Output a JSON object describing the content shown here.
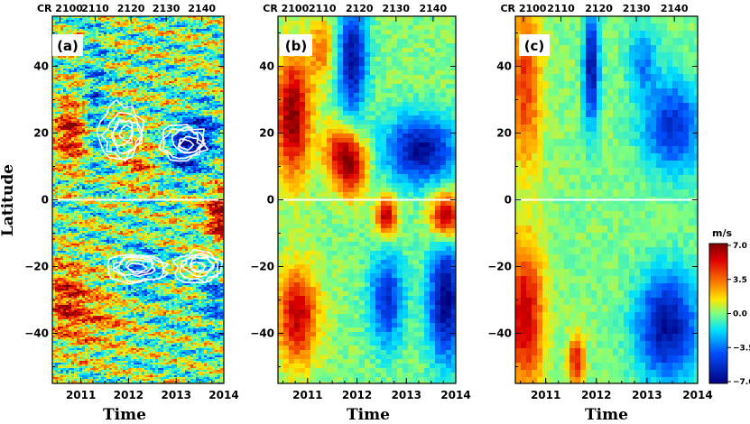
{
  "chart_data": [
    {
      "type": "heatmap",
      "panel_label": "(a)",
      "xlabel": "Time",
      "ylabel": "Latitude",
      "x_ticks": [
        "2011",
        "2012",
        "2013",
        "2014"
      ],
      "y_ticks": [
        "-40",
        "-20",
        "0",
        "20",
        "40"
      ],
      "top_axis_ticks": [
        "CR 2100",
        "2110",
        "2120",
        "2130",
        "2140"
      ],
      "xlim": [
        2010.4,
        2014.0
      ],
      "ylim": [
        -55,
        55
      ],
      "overlay": "white contours (magnetic activity)",
      "pattern": "small-scale banded flows",
      "features": [
        {
          "t": 2010.8,
          "lat": 20,
          "v": 5.5,
          "wt": 0.35,
          "wl": 10
        },
        {
          "t": 2010.7,
          "lat": -30,
          "v": 4.5,
          "wt": 0.4,
          "wl": 12
        },
        {
          "t": 2013.9,
          "lat": -5,
          "v": 6.5,
          "wt": 0.25,
          "wl": 8
        },
        {
          "t": 2013.2,
          "lat": 15,
          "v": -5,
          "wt": 0.35,
          "wl": 8
        },
        {
          "t": 2013.6,
          "lat": 20,
          "v": -4,
          "wt": 0.3,
          "wl": 8
        },
        {
          "t": 2011.3,
          "lat": 28,
          "v": -3,
          "wt": 0.25,
          "wl": 20
        },
        {
          "t": 2012.2,
          "lat": 10,
          "v": 3,
          "wt": 0.3,
          "wl": 8
        },
        {
          "t": 2012.3,
          "lat": -22,
          "v": -3,
          "wt": 0.4,
          "wl": 8
        },
        {
          "t": 2013.8,
          "lat": -30,
          "v": -3,
          "wt": 0.3,
          "wl": 10
        },
        {
          "t": 2011.4,
          "lat": -35,
          "v": 2.5,
          "wt": 0.6,
          "wl": 10
        }
      ]
    },
    {
      "type": "heatmap",
      "panel_label": "(b)",
      "xlabel": "Time",
      "ylabel": "",
      "x_ticks": [
        "2011",
        "2012",
        "2013",
        "2014"
      ],
      "y_ticks": [
        "-40",
        "-20",
        "0",
        "20",
        "40"
      ],
      "top_axis_ticks": [
        "CR 2100",
        "2110",
        "2120",
        "2130",
        "2140"
      ],
      "xlim": [
        2010.4,
        2014.0
      ],
      "ylim": [
        -55,
        55
      ],
      "pattern": "smoothed large-scale flows",
      "features": [
        {
          "t": 2010.7,
          "lat": 25,
          "v": 7,
          "wt": 0.35,
          "wl": 18
        },
        {
          "t": 2010.8,
          "lat": -35,
          "v": 6,
          "wt": 0.4,
          "wl": 14
        },
        {
          "t": 2011.9,
          "lat": 10,
          "v": 6,
          "wt": 0.3,
          "wl": 9
        },
        {
          "t": 2011.6,
          "lat": 15,
          "v": 4,
          "wt": 0.3,
          "wl": 8
        },
        {
          "t": 2012.6,
          "lat": -5,
          "v": 6.5,
          "wt": 0.2,
          "wl": 6
        },
        {
          "t": 2013.8,
          "lat": -5,
          "v": 7,
          "wt": 0.3,
          "wl": 7
        },
        {
          "t": 2011.9,
          "lat": 42,
          "v": -6.5,
          "wt": 0.3,
          "wl": 16
        },
        {
          "t": 2013.3,
          "lat": 15,
          "v": -6.5,
          "wt": 0.7,
          "wl": 10
        },
        {
          "t": 2013.8,
          "lat": -30,
          "v": -7,
          "wt": 0.35,
          "wl": 18
        },
        {
          "t": 2012.6,
          "lat": -30,
          "v": -5,
          "wt": 0.35,
          "wl": 14
        },
        {
          "t": 2011.3,
          "lat": 45,
          "v": 3,
          "wt": 0.3,
          "wl": 10
        }
      ]
    },
    {
      "type": "heatmap",
      "panel_label": "(c)",
      "xlabel": "Time",
      "ylabel": "",
      "x_ticks": [
        "2011",
        "2012",
        "2013",
        "2014"
      ],
      "y_ticks": [
        "-40",
        "-20",
        "0",
        "20",
        "40"
      ],
      "top_axis_ticks": [
        "CR 2100",
        "2110",
        "2120",
        "2130",
        "2140"
      ],
      "xlim": [
        2010.4,
        2014.0
      ],
      "ylim": [
        -55,
        55
      ],
      "pattern": "time-smoothed flows",
      "features": [
        {
          "t": 2010.6,
          "lat": 35,
          "v": 4.5,
          "wt": 0.3,
          "wl": 25
        },
        {
          "t": 2010.6,
          "lat": -35,
          "v": 6,
          "wt": 0.35,
          "wl": 22
        },
        {
          "t": 2011.6,
          "lat": -48,
          "v": 5,
          "wt": 0.15,
          "wl": 8
        },
        {
          "t": 2011.9,
          "lat": 40,
          "v": -6.5,
          "wt": 0.15,
          "wl": 18
        },
        {
          "t": 2013.5,
          "lat": 22,
          "v": -5,
          "wt": 0.6,
          "wl": 14
        },
        {
          "t": 2013.4,
          "lat": -38,
          "v": -6.5,
          "wt": 0.6,
          "wl": 16
        },
        {
          "t": 2012.9,
          "lat": 42,
          "v": -3,
          "wt": 0.3,
          "wl": 10
        }
      ]
    }
  ],
  "colorbar": {
    "unit": "m/s",
    "ticks": [
      "7.0",
      "3.5",
      "0.0",
      "−3.5",
      "−7.0"
    ],
    "range": [
      -7.0,
      7.0
    ]
  }
}
